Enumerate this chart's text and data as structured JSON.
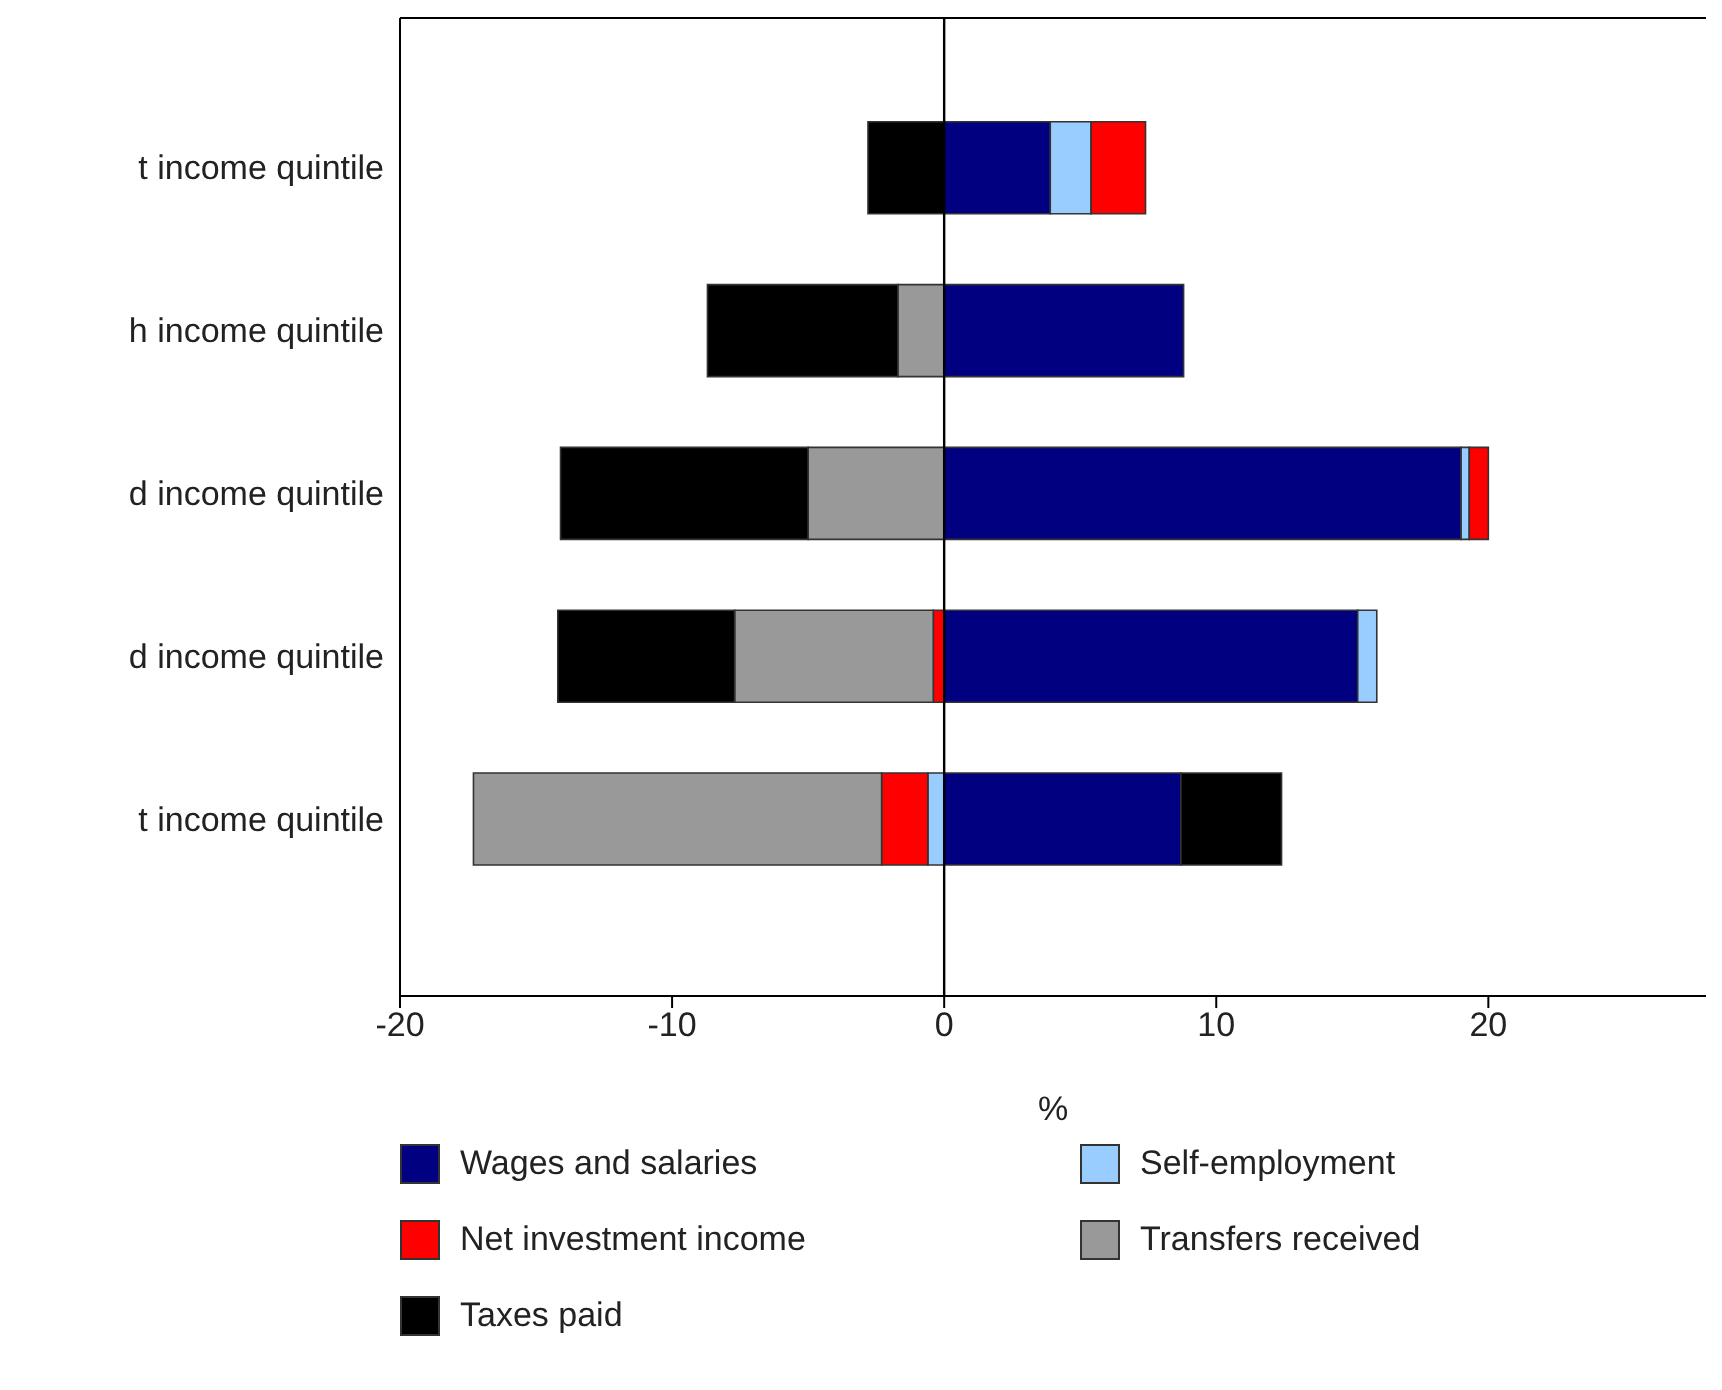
{
  "chart_data": {
    "type": "bar",
    "orientation": "horizontal",
    "stacked": true,
    "categories": [
      "t income quintile",
      "h income quintile",
      "d income quintile",
      "d income quintile",
      "t income quintile"
    ],
    "series": [
      {
        "name": "Wages and salaries",
        "color": "#000080",
        "values": [
          3.9,
          8.8,
          19.0,
          15.2,
          8.7
        ]
      },
      {
        "name": "Self-employment",
        "color": "#99ccff",
        "values": [
          1.5,
          null,
          0.3,
          0.7,
          -0.6
        ]
      },
      {
        "name": "Net investment income",
        "color": "#ff0000",
        "values": [
          2.0,
          null,
          0.7,
          -0.4,
          -1.7
        ]
      },
      {
        "name": "Transfers received",
        "color": "#999999",
        "values": [
          null,
          -1.7,
          -5.0,
          -7.3,
          -15.0
        ]
      },
      {
        "name": "Taxes paid",
        "color": "#000000",
        "values": [
          -2.8,
          -7.0,
          -9.1,
          -6.5,
          3.7
        ]
      }
    ],
    "xlim": [
      -20,
      28
    ],
    "xticks": [
      -20,
      -10,
      0,
      10,
      20
    ],
    "xlabel": "%",
    "ref_lines": [
      {
        "axis": "x",
        "value": 0
      }
    ],
    "grid": false,
    "legend": "bottom"
  }
}
